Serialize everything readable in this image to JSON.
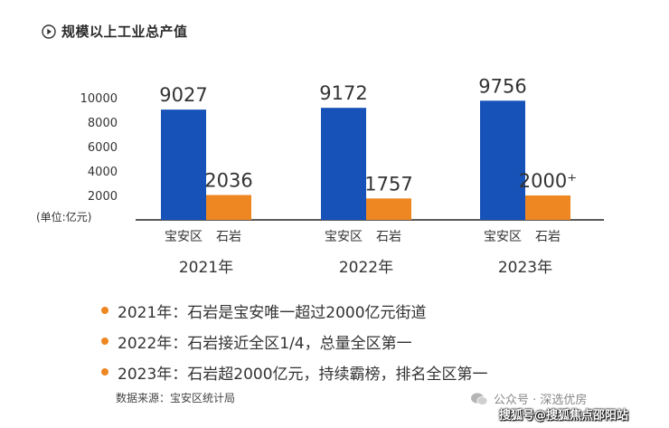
{
  "header": {
    "title": "规模以上工业总产值"
  },
  "chart_data": {
    "type": "bar",
    "ylabel": "(单位:亿元)",
    "ylim": [
      0,
      10000
    ],
    "yticks": [
      2000,
      4000,
      6000,
      8000,
      10000
    ],
    "groups": [
      "2021年",
      "2022年",
      "2023年"
    ],
    "series": [
      {
        "name": "宝安区",
        "color": "#1752b8",
        "values": [
          9027,
          9172,
          9756
        ],
        "labels": [
          "9027",
          "9172",
          "9756"
        ]
      },
      {
        "name": "石岩",
        "color": "#ee8722",
        "values": [
          2036,
          1757,
          2000
        ],
        "labels": [
          "2036",
          "1757",
          "2000⁺"
        ]
      }
    ],
    "grid": false
  },
  "bullets": [
    "2021年：石岩是宝安唯一超过2000亿元街道",
    "2022年：石岩接近全区1/4，总量全区第一",
    "2023年：石岩超2000亿元，持续霸榜，排名全区第一"
  ],
  "source": "数据来源：宝安区统计局",
  "wechat": "公众号 · 深选优房",
  "watermark": "搜狐号@搜狐焦点邵阳站"
}
